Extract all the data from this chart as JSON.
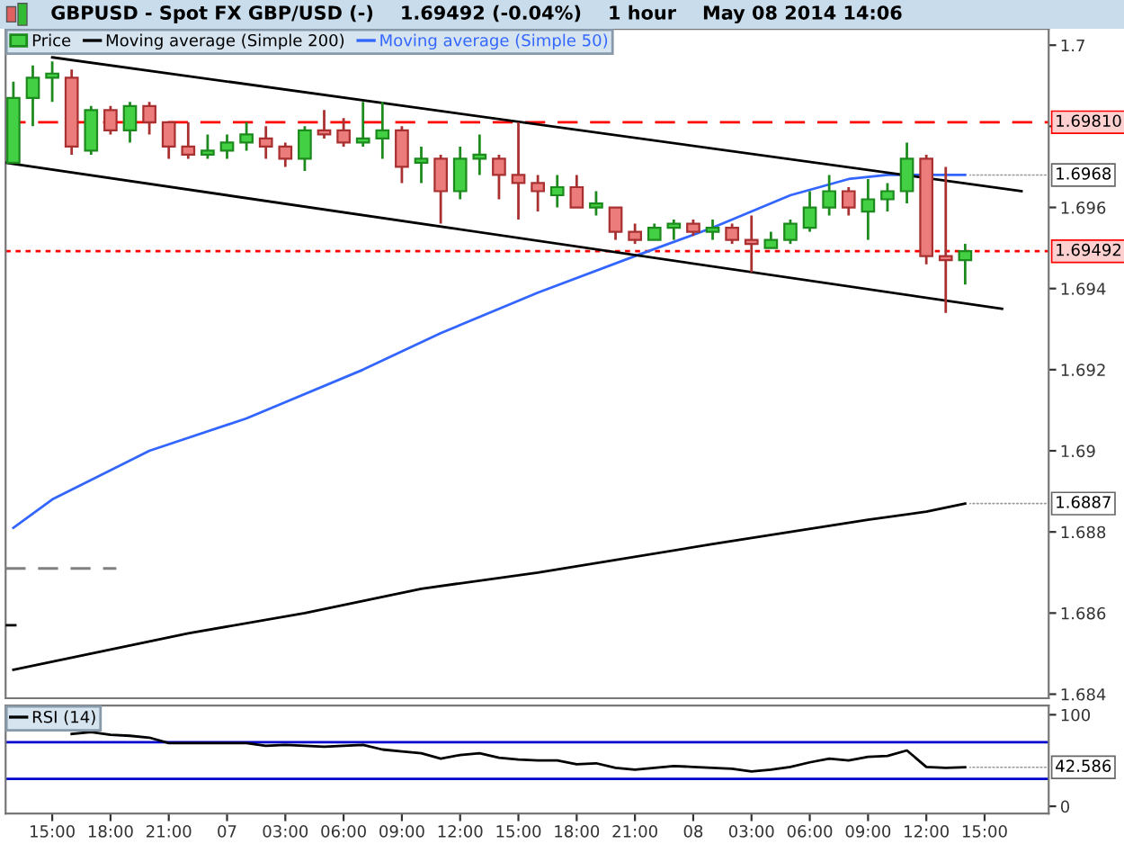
{
  "chart_data": [
    {
      "type": "candlestick",
      "title": "GBPUSD - Spot FX GBP/USD (-)    1.69492 (-0.04%)    1 hour    May 08 2014 14:06",
      "x": [
        "2014-05-06T13:00",
        "2014-05-06T14:00",
        "2014-05-06T15:00",
        "2014-05-06T16:00",
        "2014-05-06T17:00",
        "2014-05-06T18:00",
        "2014-05-06T19:00",
        "2014-05-06T20:00",
        "2014-05-06T21:00",
        "2014-05-06T22:00",
        "2014-05-06T23:00",
        "2014-05-07T00:00",
        "2014-05-07T01:00",
        "2014-05-07T02:00",
        "2014-05-07T03:00",
        "2014-05-07T04:00",
        "2014-05-07T05:00",
        "2014-05-07T06:00",
        "2014-05-07T07:00",
        "2014-05-07T08:00",
        "2014-05-07T09:00",
        "2014-05-07T10:00",
        "2014-05-07T11:00",
        "2014-05-07T12:00",
        "2014-05-07T13:00",
        "2014-05-07T14:00",
        "2014-05-07T15:00",
        "2014-05-07T16:00",
        "2014-05-07T17:00",
        "2014-05-07T18:00",
        "2014-05-07T19:00",
        "2014-05-07T20:00",
        "2014-05-07T21:00",
        "2014-05-07T22:00",
        "2014-05-07T23:00",
        "2014-05-08T00:00",
        "2014-05-08T01:00",
        "2014-05-08T02:00",
        "2014-05-08T03:00",
        "2014-05-08T04:00",
        "2014-05-08T05:00",
        "2014-05-08T06:00",
        "2014-05-08T07:00",
        "2014-05-08T08:00",
        "2014-05-08T09:00",
        "2014-05-08T10:00",
        "2014-05-08T11:00",
        "2014-05-08T12:00",
        "2014-05-08T13:00",
        "2014-05-08T14:00"
      ],
      "series": [
        {
          "name": "Price",
          "type": "candlestick",
          "ohlc": [
            [
              1.6971,
              1.6991,
              1.6971,
              1.6987
            ],
            [
              1.6987,
              1.6995,
              1.698,
              1.6992
            ],
            [
              1.6992,
              1.6996,
              1.6986,
              1.6993
            ],
            [
              1.6992,
              1.6994,
              1.6973,
              1.6975
            ],
            [
              1.6974,
              1.6985,
              1.6973,
              1.6984
            ],
            [
              1.6984,
              1.6985,
              1.6978,
              1.6979
            ],
            [
              1.6979,
              1.6986,
              1.6976,
              1.6985
            ],
            [
              1.6985,
              1.6986,
              1.6978,
              1.6981
            ],
            [
              1.6981,
              1.6981,
              1.6972,
              1.6975
            ],
            [
              1.6975,
              1.6981,
              1.6972,
              1.6973
            ],
            [
              1.6973,
              1.6978,
              1.6972,
              1.6974
            ],
            [
              1.6974,
              1.6978,
              1.6972,
              1.6976
            ],
            [
              1.6976,
              1.6981,
              1.6974,
              1.6978
            ],
            [
              1.6977,
              1.698,
              1.6972,
              1.6975
            ],
            [
              1.6975,
              1.6976,
              1.697,
              1.6972
            ],
            [
              1.6972,
              1.698,
              1.6969,
              1.6979
            ],
            [
              1.6979,
              1.6984,
              1.6977,
              1.6978
            ],
            [
              1.6979,
              1.6982,
              1.6975,
              1.6976
            ],
            [
              1.6976,
              1.6986,
              1.6975,
              1.6977
            ],
            [
              1.6977,
              1.6986,
              1.6972,
              1.6979
            ],
            [
              1.6979,
              1.698,
              1.6966,
              1.697
            ],
            [
              1.6971,
              1.6975,
              1.6966,
              1.6972
            ],
            [
              1.6972,
              1.6973,
              1.6956,
              1.6964
            ],
            [
              1.6964,
              1.6975,
              1.6962,
              1.6972
            ],
            [
              1.6972,
              1.6978,
              1.6968,
              1.6973
            ],
            [
              1.6972,
              1.6973,
              1.6962,
              1.6968
            ],
            [
              1.6968,
              1.6981,
              1.6957,
              1.6966
            ],
            [
              1.6966,
              1.6968,
              1.6959,
              1.6964
            ],
            [
              1.6963,
              1.6968,
              1.696,
              1.6965
            ],
            [
              1.6965,
              1.6968,
              1.696,
              1.696
            ],
            [
              1.696,
              1.6964,
              1.6958,
              1.6961
            ],
            [
              1.696,
              1.696,
              1.6952,
              1.6954
            ],
            [
              1.6954,
              1.6956,
              1.6951,
              1.6952
            ],
            [
              1.6952,
              1.6956,
              1.6952,
              1.6955
            ],
            [
              1.6955,
              1.6957,
              1.6952,
              1.6956
            ],
            [
              1.6956,
              1.6957,
              1.6953,
              1.6954
            ],
            [
              1.6954,
              1.6957,
              1.6952,
              1.6955
            ],
            [
              1.6955,
              1.6956,
              1.6951,
              1.6952
            ],
            [
              1.6952,
              1.6958,
              1.6944,
              1.6951
            ],
            [
              1.695,
              1.6954,
              1.695,
              1.6952
            ],
            [
              1.6952,
              1.6957,
              1.6951,
              1.6956
            ],
            [
              1.6955,
              1.6964,
              1.6954,
              1.696
            ],
            [
              1.696,
              1.6968,
              1.6958,
              1.6964
            ],
            [
              1.6964,
              1.6965,
              1.6958,
              1.696
            ],
            [
              1.6959,
              1.6967,
              1.6952,
              1.6962
            ],
            [
              1.6962,
              1.6966,
              1.6959,
              1.6964
            ],
            [
              1.6964,
              1.6976,
              1.6961,
              1.6972
            ],
            [
              1.6972,
              1.6973,
              1.6946,
              1.6948
            ],
            [
              1.6948,
              1.697,
              1.6934,
              1.6947
            ],
            [
              1.6947,
              1.6951,
              1.6941,
              1.69492
            ]
          ]
        },
        {
          "name": "Moving average (Simple 200)",
          "type": "line",
          "color": "#000000",
          "x": [
            "2014-05-06T13:00",
            "2014-05-06T15:00",
            "2014-05-06T22:00",
            "2014-05-07T04:00",
            "2014-05-07T10:00",
            "2014-05-07T16:00",
            "2014-05-08T01:00",
            "2014-05-08T05:00",
            "2014-05-08T09:00",
            "2014-05-08T12:00",
            "2014-05-08T14:00"
          ],
          "values": [
            1.6846,
            1.6848,
            1.6855,
            1.686,
            1.6866,
            1.687,
            1.6877,
            1.688,
            1.6883,
            1.6885,
            1.6887
          ]
        },
        {
          "name": "Moving average (Simple 50)",
          "type": "line",
          "color": "#3366ff",
          "x": [
            "2014-05-06T13:00",
            "2014-05-06T15:00",
            "2014-05-06T20:00",
            "2014-05-07T01:00",
            "2014-05-07T07:00",
            "2014-05-07T11:00",
            "2014-05-07T16:00",
            "2014-05-07T21:00",
            "2014-05-08T01:00",
            "2014-05-08T05:00",
            "2014-05-08T08:00",
            "2014-05-08T10:00",
            "2014-05-08T12:00",
            "2014-05-08T14:00"
          ],
          "values": [
            1.6881,
            1.6888,
            1.69,
            1.6908,
            1.692,
            1.6929,
            1.6939,
            1.6948,
            1.6955,
            1.6963,
            1.6967,
            1.6968,
            1.6968,
            1.6968
          ]
        },
        {
          "type": "line",
          "color": "#000000",
          "x": [
            "2014-05-06T15:00",
            "2014-05-08T16:54"
          ],
          "values": [
            1.6997,
            1.6964
          ]
        },
        {
          "type": "line",
          "color": "#000000",
          "x": [
            "2014-05-06T12:36",
            "2014-05-08T15:54"
          ],
          "values": [
            1.6971,
            1.6935
          ]
        },
        {
          "type": "line",
          "color": "#808080",
          "line_style": "dashed",
          "x": [
            "2014-05-06T12:36",
            "2014-05-06T18:18"
          ],
          "values": [
            1.6871,
            1.6871
          ]
        },
        {
          "type": "line",
          "color": "#000000",
          "x": [
            "2014-05-06T12:36",
            "2014-05-06T13:06"
          ],
          "values": [
            1.6857,
            1.6857
          ]
        }
      ],
      "ref_lines": [
        {
          "axis": "y",
          "value": 1.6981,
          "label": "1.69810",
          "color": "#ff0000",
          "line_style": "dashed"
        },
        {
          "axis": "y",
          "value": 1.69492,
          "label": "1.69492",
          "color": "#ff0000",
          "line_style": "dotted"
        }
      ],
      "annotations": [
        {
          "text": "1.6968",
          "x": "2014-05-08T14:00",
          "y": 1.6968
        },
        {
          "text": "1.6887",
          "x": "2014-05-08T14:00",
          "y": 1.6887
        }
      ],
      "xlim": [
        "2014-05-06T12:36",
        "2014-05-08T18:18"
      ],
      "ylim": [
        1.6839,
        1.7004
      ],
      "yticks": [
        1.684,
        1.686,
        1.688,
        1.69,
        1.692,
        1.694,
        1.696,
        {
          "value": 1.698,
          "label": null
        },
        1.7
      ],
      "tick_labels": "y",
      "legend": "top left"
    },
    {
      "type": "line",
      "x": [
        "2014-05-06T16:00",
        "2014-05-06T17:00",
        "2014-05-06T18:00",
        "2014-05-06T19:00",
        "2014-05-06T20:00",
        "2014-05-06T21:00",
        "2014-05-06T22:00",
        "2014-05-06T23:00",
        "2014-05-07T00:00",
        "2014-05-07T01:00",
        "2014-05-07T02:00",
        "2014-05-07T03:00",
        "2014-05-07T04:00",
        "2014-05-07T05:00",
        "2014-05-07T06:00",
        "2014-05-07T07:00",
        "2014-05-07T08:00",
        "2014-05-07T09:00",
        "2014-05-07T10:00",
        "2014-05-07T11:00",
        "2014-05-07T12:00",
        "2014-05-07T13:00",
        "2014-05-07T14:00",
        "2014-05-07T15:00",
        "2014-05-07T16:00",
        "2014-05-07T17:00",
        "2014-05-07T18:00",
        "2014-05-07T19:00",
        "2014-05-07T20:00",
        "2014-05-07T21:00",
        "2014-05-07T22:00",
        "2014-05-07T23:00",
        "2014-05-08T00:00",
        "2014-05-08T01:00",
        "2014-05-08T02:00",
        "2014-05-08T03:00",
        "2014-05-08T04:00",
        "2014-05-08T05:00",
        "2014-05-08T06:00",
        "2014-05-08T07:00",
        "2014-05-08T08:00",
        "2014-05-08T09:00",
        "2014-05-08T10:00",
        "2014-05-08T11:00",
        "2014-05-08T12:00",
        "2014-05-08T13:00",
        "2014-05-08T14:00"
      ],
      "series": [
        {
          "name": "RSI (14)",
          "color": "#000000",
          "values": [
            79,
            81,
            78,
            77,
            75,
            69,
            69,
            69,
            69,
            69,
            66,
            67,
            66,
            65,
            66,
            67,
            62,
            60,
            58,
            52,
            56,
            58,
            53,
            51,
            50,
            50,
            46,
            47,
            42,
            40,
            42,
            44,
            43,
            42,
            41,
            38,
            40,
            43,
            48,
            52,
            50,
            54,
            55,
            61,
            43,
            42,
            42.586
          ]
        }
      ],
      "ref_lines": [
        {
          "axis": "y",
          "value": 70,
          "color": "#0000cc"
        },
        {
          "axis": "y",
          "value": 30,
          "color": "#0000cc"
        }
      ],
      "annotations": [
        {
          "text": "42.586",
          "x": "2014-05-08T14:00",
          "y": 42.586
        }
      ],
      "xlim": [
        "2014-05-06T12:36",
        "2014-05-08T18:18"
      ],
      "ylim": [
        -8,
        110
      ],
      "yticks": [
        0,
        100
      ],
      "xticks": [
        {
          "value": "2014-05-06T15:00",
          "label": "15:00"
        },
        {
          "value": "2014-05-06T18:00",
          "label": "18:00"
        },
        {
          "value": "2014-05-06T21:00",
          "label": "21:00"
        },
        {
          "value": "2014-05-07T00:00",
          "label": "07"
        },
        {
          "value": "2014-05-07T03:00",
          "label": "03:00"
        },
        {
          "value": "2014-05-07T06:00",
          "label": "06:00"
        },
        {
          "value": "2014-05-07T09:00",
          "label": "09:00"
        },
        {
          "value": "2014-05-07T12:00",
          "label": "12:00"
        },
        {
          "value": "2014-05-07T15:00",
          "label": "15:00"
        },
        {
          "value": "2014-05-07T18:00",
          "label": "18:00"
        },
        {
          "value": "2014-05-07T21:00",
          "label": "21:00"
        },
        {
          "value": "2014-05-08T00:00",
          "label": "08"
        },
        {
          "value": "2014-05-08T03:00",
          "label": "03:00"
        },
        {
          "value": "2014-05-08T06:00",
          "label": "06:00"
        },
        {
          "value": "2014-05-08T09:00",
          "label": "09:00"
        },
        {
          "value": "2014-05-08T12:00",
          "label": "12:00"
        },
        {
          "value": "2014-05-08T15:00",
          "label": "15:00"
        }
      ],
      "legend": "top left"
    }
  ]
}
